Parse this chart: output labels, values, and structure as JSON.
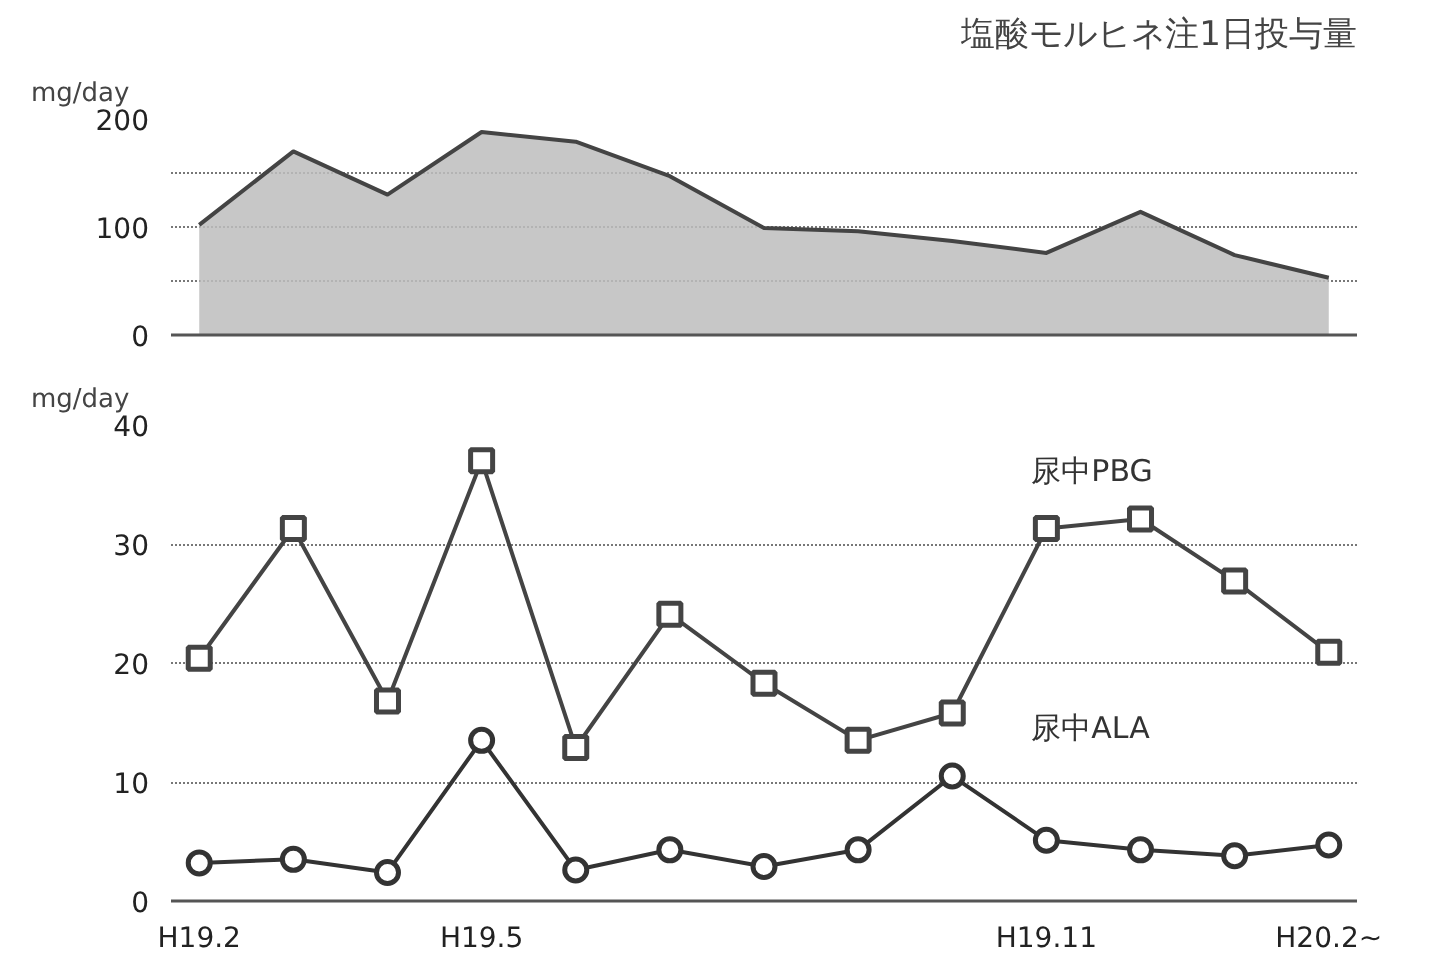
{
  "chart_data": [
    {
      "type": "area",
      "title": "塩酸モルヒネ注1日投与量",
      "ylabel": "mg/day",
      "categories": [
        null,
        null,
        null,
        null,
        null,
        null,
        null,
        null,
        null,
        null,
        null,
        null,
        null
      ],
      "ylim": [
        0,
        200
      ],
      "yticks": [
        0,
        {
          "value": 50,
          "label": null
        },
        100,
        {
          "value": 150,
          "label": null
        },
        200
      ],
      "grid": "y",
      "series": [
        {
          "color": "#bdbdbd",
          "values": [
            102,
            170,
            130,
            188,
            179,
            147,
            99,
            96,
            87,
            76,
            114,
            74,
            53
          ]
        }
      ]
    },
    {
      "type": "line",
      "ylabel": "mg/day",
      "categories": [
        "H19.2",
        null,
        null,
        "H19.5",
        null,
        null,
        null,
        null,
        null,
        "H19.11",
        null,
        null,
        "H20.2~"
      ],
      "ylim": [
        0,
        40
      ],
      "yticks": [
        0,
        10,
        20,
        30,
        40
      ],
      "grid": "y",
      "line_style": "solid",
      "series": [
        {
          "name": "尿中PBG",
          "color": "#444444",
          "marker": "square",
          "values": [
            20.4,
            31.3,
            16.8,
            37,
            12.9,
            24.1,
            18.3,
            13.5,
            15.8,
            31.3,
            32.1,
            26.9,
            20.9
          ]
        },
        {
          "name": "尿中ALA",
          "color": "#333333",
          "marker": "circle",
          "values": [
            3.2,
            3.5,
            2.4,
            13.5,
            2.6,
            4.3,
            2.9,
            4.3,
            10.5,
            5.1,
            4.3,
            3.8,
            4.7
          ]
        }
      ]
    }
  ]
}
